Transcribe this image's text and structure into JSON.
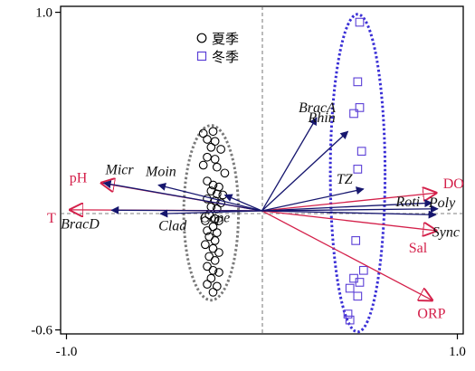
{
  "chart_data": {
    "type": "biplot",
    "title": "",
    "xlabel": "",
    "ylabel": "",
    "xlim": [
      -1.03,
      1.03
    ],
    "ylim": [
      -0.62,
      1.03
    ],
    "x_ticks": [
      "-1.0",
      "1.0"
    ],
    "y_ticks": [
      "1.0",
      "-0.6"
    ],
    "x_tick_values": [
      -1.0,
      1.0
    ],
    "y_tick_values": [
      1.0,
      -0.6
    ],
    "legend": [
      {
        "label": "夏季",
        "marker": "circle",
        "color": "#000000"
      },
      {
        "label": "冬季",
        "marker": "square",
        "color": "#5b3fd6"
      }
    ],
    "env_vectors": [
      {
        "label": "pH",
        "x": -0.82,
        "y": 0.14
      },
      {
        "label": "T",
        "x": -0.98,
        "y": 0.005
      },
      {
        "label": "DO",
        "x": 0.89,
        "y": 0.09
      },
      {
        "label": "Sal",
        "x": 0.89,
        "y": -0.1
      },
      {
        "label": "ORP",
        "x": 0.87,
        "y": -0.45
      }
    ],
    "species_vectors": [
      {
        "label": "Micr",
        "x": -0.81,
        "y": 0.14
      },
      {
        "label": "Moin",
        "x": -0.53,
        "y": 0.13
      },
      {
        "label": "BracD",
        "x": -0.77,
        "y": 0.003
      },
      {
        "label": "Clad",
        "x": -0.52,
        "y": -0.015
      },
      {
        "label": "Cope",
        "x": -0.19,
        "y": 0.08
      },
      {
        "label": "BracA",
        "x": 0.28,
        "y": 0.47
      },
      {
        "label": "Rhin",
        "x": 0.44,
        "y": 0.4
      },
      {
        "label": "TZ",
        "x": 0.52,
        "y": 0.11
      },
      {
        "label": "Roti",
        "x": 0.87,
        "y": 0.04
      },
      {
        "label": "Poly",
        "x": 0.9,
        "y": 0.01
      },
      {
        "label": "Sync",
        "x": 0.89,
        "y": -0.02
      }
    ],
    "summer_samples": [
      {
        "x": -0.3,
        "y": 0.39
      },
      {
        "x": -0.25,
        "y": 0.4
      },
      {
        "x": -0.28,
        "y": 0.36
      },
      {
        "x": -0.24,
        "y": 0.35
      },
      {
        "x": -0.26,
        "y": 0.32
      },
      {
        "x": -0.21,
        "y": 0.31
      },
      {
        "x": -0.28,
        "y": 0.27
      },
      {
        "x": -0.24,
        "y": 0.26
      },
      {
        "x": -0.3,
        "y": 0.23
      },
      {
        "x": -0.23,
        "y": 0.22
      },
      {
        "x": -0.19,
        "y": 0.19
      },
      {
        "x": -0.28,
        "y": 0.15
      },
      {
        "x": -0.25,
        "y": 0.13
      },
      {
        "x": -0.22,
        "y": 0.12
      },
      {
        "x": -0.26,
        "y": 0.1
      },
      {
        "x": -0.23,
        "y": 0.085
      },
      {
        "x": -0.2,
        "y": 0.08
      },
      {
        "x": -0.28,
        "y": 0.06
      },
      {
        "x": -0.24,
        "y": 0.05
      },
      {
        "x": -0.21,
        "y": 0.04
      },
      {
        "x": -0.26,
        "y": 0.02
      },
      {
        "x": -0.23,
        "y": 0.01
      },
      {
        "x": -0.27,
        "y": -0.02
      },
      {
        "x": -0.24,
        "y": -0.04
      },
      {
        "x": -0.29,
        "y": -0.05
      },
      {
        "x": -0.22,
        "y": -0.05
      },
      {
        "x": -0.25,
        "y": -0.08
      },
      {
        "x": -0.28,
        "y": -0.1
      },
      {
        "x": -0.23,
        "y": -0.11
      },
      {
        "x": -0.27,
        "y": -0.13
      },
      {
        "x": -0.24,
        "y": -0.15
      },
      {
        "x": -0.29,
        "y": -0.17
      },
      {
        "x": -0.25,
        "y": -0.19
      },
      {
        "x": -0.22,
        "y": -0.21
      },
      {
        "x": -0.27,
        "y": -0.23
      },
      {
        "x": -0.24,
        "y": -0.25
      },
      {
        "x": -0.28,
        "y": -0.28
      },
      {
        "x": -0.25,
        "y": -0.3
      },
      {
        "x": -0.22,
        "y": -0.31
      },
      {
        "x": -0.26,
        "y": -0.34
      },
      {
        "x": -0.28,
        "y": -0.37
      },
      {
        "x": -0.23,
        "y": -0.38
      },
      {
        "x": -0.25,
        "y": -0.41
      }
    ],
    "winter_samples": [
      {
        "x": 0.5,
        "y": 0.95
      },
      {
        "x": 0.49,
        "y": 0.65
      },
      {
        "x": 0.5,
        "y": 0.52
      },
      {
        "x": 0.47,
        "y": 0.49
      },
      {
        "x": 0.51,
        "y": 0.3
      },
      {
        "x": 0.49,
        "y": 0.21
      },
      {
        "x": 0.48,
        "y": -0.15
      },
      {
        "x": 0.52,
        "y": -0.3
      },
      {
        "x": 0.47,
        "y": -0.34
      },
      {
        "x": 0.5,
        "y": -0.36
      },
      {
        "x": 0.45,
        "y": -0.39
      },
      {
        "x": 0.49,
        "y": -0.43
      },
      {
        "x": 0.44,
        "y": -0.52
      },
      {
        "x": 0.45,
        "y": -0.55
      }
    ],
    "ellipses": [
      {
        "series": "夏季",
        "cx": -0.26,
        "cy": -0.01,
        "rx": 0.14,
        "ry": 0.44,
        "color": "#7a7a7a"
      },
      {
        "series": "冬季",
        "cx": 0.49,
        "cy": 0.19,
        "rx": 0.14,
        "ry": 0.8,
        "color": "#3a2fd6"
      }
    ],
    "colors": {
      "env": "#d4204a",
      "species": "#16166e",
      "winter_marker": "#5b3fd6"
    }
  }
}
